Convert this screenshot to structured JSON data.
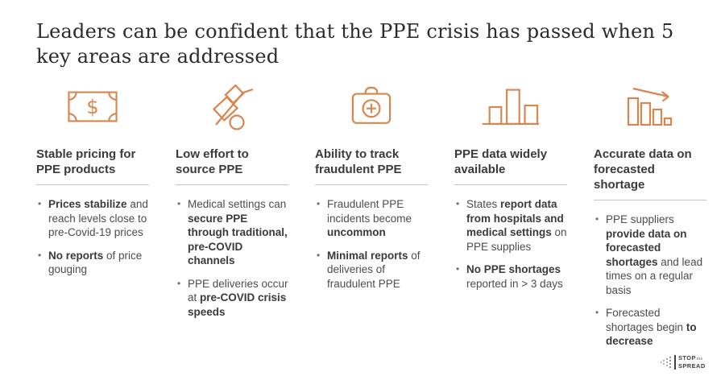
{
  "title": "Leaders can be confident that the PPE crisis has passed when 5 key areas are addressed",
  "colors": {
    "accent_orange": "#D9854E",
    "title_text": "#2B2B2E",
    "heading_text": "#3A3A3A",
    "body_text": "#4C4C4C",
    "rule_gray": "#C5C5C5",
    "logo_gray": "#3F3F3F"
  },
  "columns": [
    {
      "icon": "dollar-bill-icon",
      "heading": "Stable pricing for PPE products",
      "bullets": [
        [
          {
            "t": "Prices stabilize",
            "b": true
          },
          {
            "t": " and reach levels close to pre-Covid-19 prices",
            "b": false
          }
        ],
        [
          {
            "t": "No reports",
            "b": true
          },
          {
            "t": " of price gouging",
            "b": false
          }
        ]
      ]
    },
    {
      "icon": "hand-truck-icon",
      "heading": "Low effort to source PPE",
      "bullets": [
        [
          {
            "t": "Medical settings can ",
            "b": false
          },
          {
            "t": "secure PPE through traditional, pre-COVID channels",
            "b": true
          }
        ],
        [
          {
            "t": "PPE deliveries occur at ",
            "b": false
          },
          {
            "t": "pre-COVID crisis speeds",
            "b": true
          }
        ]
      ]
    },
    {
      "icon": "first-aid-kit-icon",
      "heading": "Ability to track fraudulent PPE",
      "bullets": [
        [
          {
            "t": "Fraudulent PPE incidents become ",
            "b": false
          },
          {
            "t": "uncommon",
            "b": true
          }
        ],
        [
          {
            "t": "Minimal reports",
            "b": true
          },
          {
            "t": " of deliveries of fraudulent PPE",
            "b": false
          }
        ]
      ]
    },
    {
      "icon": "bar-chart-icon",
      "heading": "PPE data widely available",
      "bullets": [
        [
          {
            "t": "States ",
            "b": false
          },
          {
            "t": "report data from hospitals and medical settings",
            "b": true
          },
          {
            "t": " on PPE supplies",
            "b": false
          }
        ],
        [
          {
            "t": "No PPE shortages",
            "b": true
          },
          {
            "t": " reported in > 3 days",
            "b": false
          }
        ]
      ]
    },
    {
      "icon": "declining-bar-chart-icon",
      "heading": "Accurate data on forecasted shortage",
      "bullets": [
        [
          {
            "t": "PPE suppliers ",
            "b": false
          },
          {
            "t": "provide data on forecasted shortages",
            "b": true
          },
          {
            "t": " and lead times on a regular basis",
            "b": false
          }
        ],
        [
          {
            "t": "Forecasted shortages begin ",
            "b": false
          },
          {
            "t": "to decrease",
            "b": true
          }
        ]
      ]
    }
  ],
  "logo": {
    "line1": "STOP",
    "line1_suffix": "the",
    "line2": "SPREAD"
  }
}
